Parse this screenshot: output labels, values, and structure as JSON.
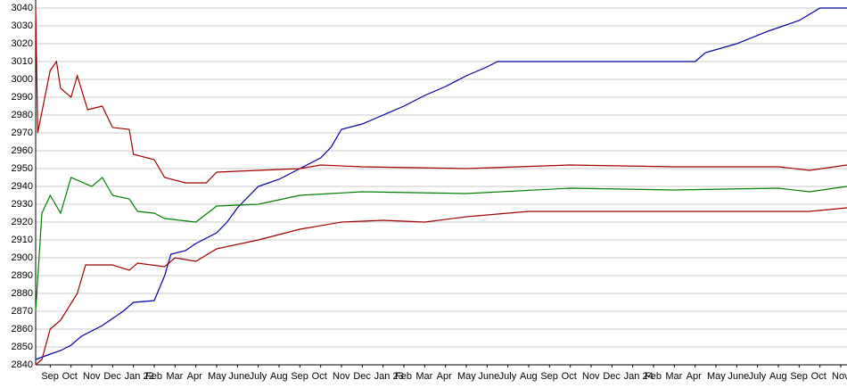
{
  "chart_data": {
    "type": "line",
    "grid": true,
    "xlim": [
      -0.7,
      38.3
    ],
    "xticks": [
      {
        "value": 0,
        "label": "Sep"
      },
      {
        "value": 1,
        "label": "Oct"
      },
      {
        "value": 2,
        "label": "Nov"
      },
      {
        "value": 3,
        "label": "Dec"
      },
      {
        "value": 4,
        "label": "Jan 22"
      },
      {
        "value": 5,
        "label": "Feb"
      },
      {
        "value": 6,
        "label": "Mar"
      },
      {
        "value": 7,
        "label": "Apr"
      },
      {
        "value": 8,
        "label": "May"
      },
      {
        "value": 9,
        "label": "June"
      },
      {
        "value": 10,
        "label": "July"
      },
      {
        "value": 11,
        "label": "Aug"
      },
      {
        "value": 12,
        "label": "Sep"
      },
      {
        "value": 13,
        "label": "Oct"
      },
      {
        "value": 14,
        "label": "Nov"
      },
      {
        "value": 15,
        "label": "Dec"
      },
      {
        "value": 16,
        "label": "Jan 23"
      },
      {
        "value": 17,
        "label": "Feb"
      },
      {
        "value": 18,
        "label": "Mar"
      },
      {
        "value": 19,
        "label": "Apr"
      },
      {
        "value": 20,
        "label": "May"
      },
      {
        "value": 21,
        "label": "June"
      },
      {
        "value": 22,
        "label": "July"
      },
      {
        "value": 23,
        "label": "Aug"
      },
      {
        "value": 24,
        "label": "Sep"
      },
      {
        "value": 25,
        "label": "Oct"
      },
      {
        "value": 26,
        "label": "Nov"
      },
      {
        "value": 27,
        "label": "Dec"
      },
      {
        "value": 28,
        "label": "Jan 24"
      },
      {
        "value": 29,
        "label": "Feb"
      },
      {
        "value": 30,
        "label": "Mar"
      },
      {
        "value": 31,
        "label": "Apr"
      },
      {
        "value": 32,
        "label": "May"
      },
      {
        "value": 33,
        "label": "June"
      },
      {
        "value": 34,
        "label": "July"
      },
      {
        "value": 35,
        "label": "Aug"
      },
      {
        "value": 36,
        "label": "Sep"
      },
      {
        "value": 37,
        "label": "Oct"
      },
      {
        "value": 38,
        "label": "Nov"
      }
    ],
    "ylim": [
      2840,
      3040
    ],
    "yticks": [
      2840,
      2850,
      2860,
      2870,
      2880,
      2890,
      2900,
      2910,
      2920,
      2930,
      2940,
      2950,
      2960,
      2970,
      2980,
      2990,
      3000,
      3010,
      3020,
      3030,
      3040
    ],
    "series": [
      {
        "color": "#0000a0",
        "x": [
          -0.7,
          0,
          0.5,
          1,
          1.5,
          2.5,
          3.5,
          4,
          5,
          5.5,
          5.8,
          6.5,
          7,
          8,
          8.5,
          9,
          10,
          11,
          12,
          13,
          13.5,
          14,
          15,
          16,
          17,
          18,
          19,
          20,
          21,
          21.5,
          31,
          31.5,
          33,
          34.5,
          36,
          37,
          38.3
        ],
        "values": [
          2843,
          2846,
          2848,
          2851,
          2856,
          2862,
          2870,
          2875,
          2876,
          2890,
          2902,
          2904,
          2908,
          2914,
          2920,
          2928,
          2940,
          2944,
          2950,
          2956,
          2962,
          2972,
          2975,
          2980,
          2985,
          2991,
          2996,
          3002,
          3007,
          3010,
          3010,
          3015,
          3020,
          3027,
          3033,
          3040,
          3040
        ]
      },
      {
        "color": "#a00000",
        "x": [
          -0.7,
          -0.6,
          0,
          0.3,
          0.5,
          1,
          1.3,
          1.8,
          2.5,
          3,
          3.8,
          4,
          5,
          5.5,
          6.5,
          7.5,
          8,
          10,
          12,
          13,
          15,
          20,
          25,
          30,
          35,
          36.5,
          38.3
        ],
        "values": [
          3040,
          2970,
          3005,
          3010,
          2995,
          2990,
          3002,
          2983,
          2985,
          2973,
          2972,
          2958,
          2955,
          2945,
          2942,
          2942,
          2948,
          2949,
          2950,
          2952,
          2951,
          2950,
          2952,
          2951,
          2951,
          2949,
          2952
        ]
      },
      {
        "color": "#008000",
        "x": [
          -0.7,
          -0.4,
          0,
          0.5,
          1,
          2,
          2.5,
          3,
          3.8,
          4.2,
          5,
          5.5,
          7,
          8,
          10,
          12,
          15,
          20,
          25,
          30,
          35,
          36.5,
          38.3
        ],
        "values": [
          2870,
          2925,
          2935,
          2925,
          2945,
          2940,
          2945,
          2935,
          2933,
          2926,
          2925,
          2922,
          2920,
          2929,
          2930,
          2935,
          2937,
          2936,
          2939,
          2938,
          2939,
          2937,
          2940
        ]
      },
      {
        "color": "#a00000",
        "x": [
          -0.7,
          -0.4,
          0,
          0.5,
          1.3,
          1.7,
          3,
          3.8,
          4.2,
          5.5,
          6,
          7,
          8,
          10,
          12,
          14,
          16,
          18,
          20,
          23,
          28,
          32,
          35,
          36.5,
          38.3
        ],
        "values": [
          2840,
          2843,
          2860,
          2865,
          2880,
          2896,
          2896,
          2893,
          2897,
          2895,
          2900,
          2898,
          2905,
          2910,
          2916,
          2920,
          2921,
          2920,
          2923,
          2926,
          2926,
          2926,
          2926,
          2926,
          2928
        ]
      }
    ]
  }
}
